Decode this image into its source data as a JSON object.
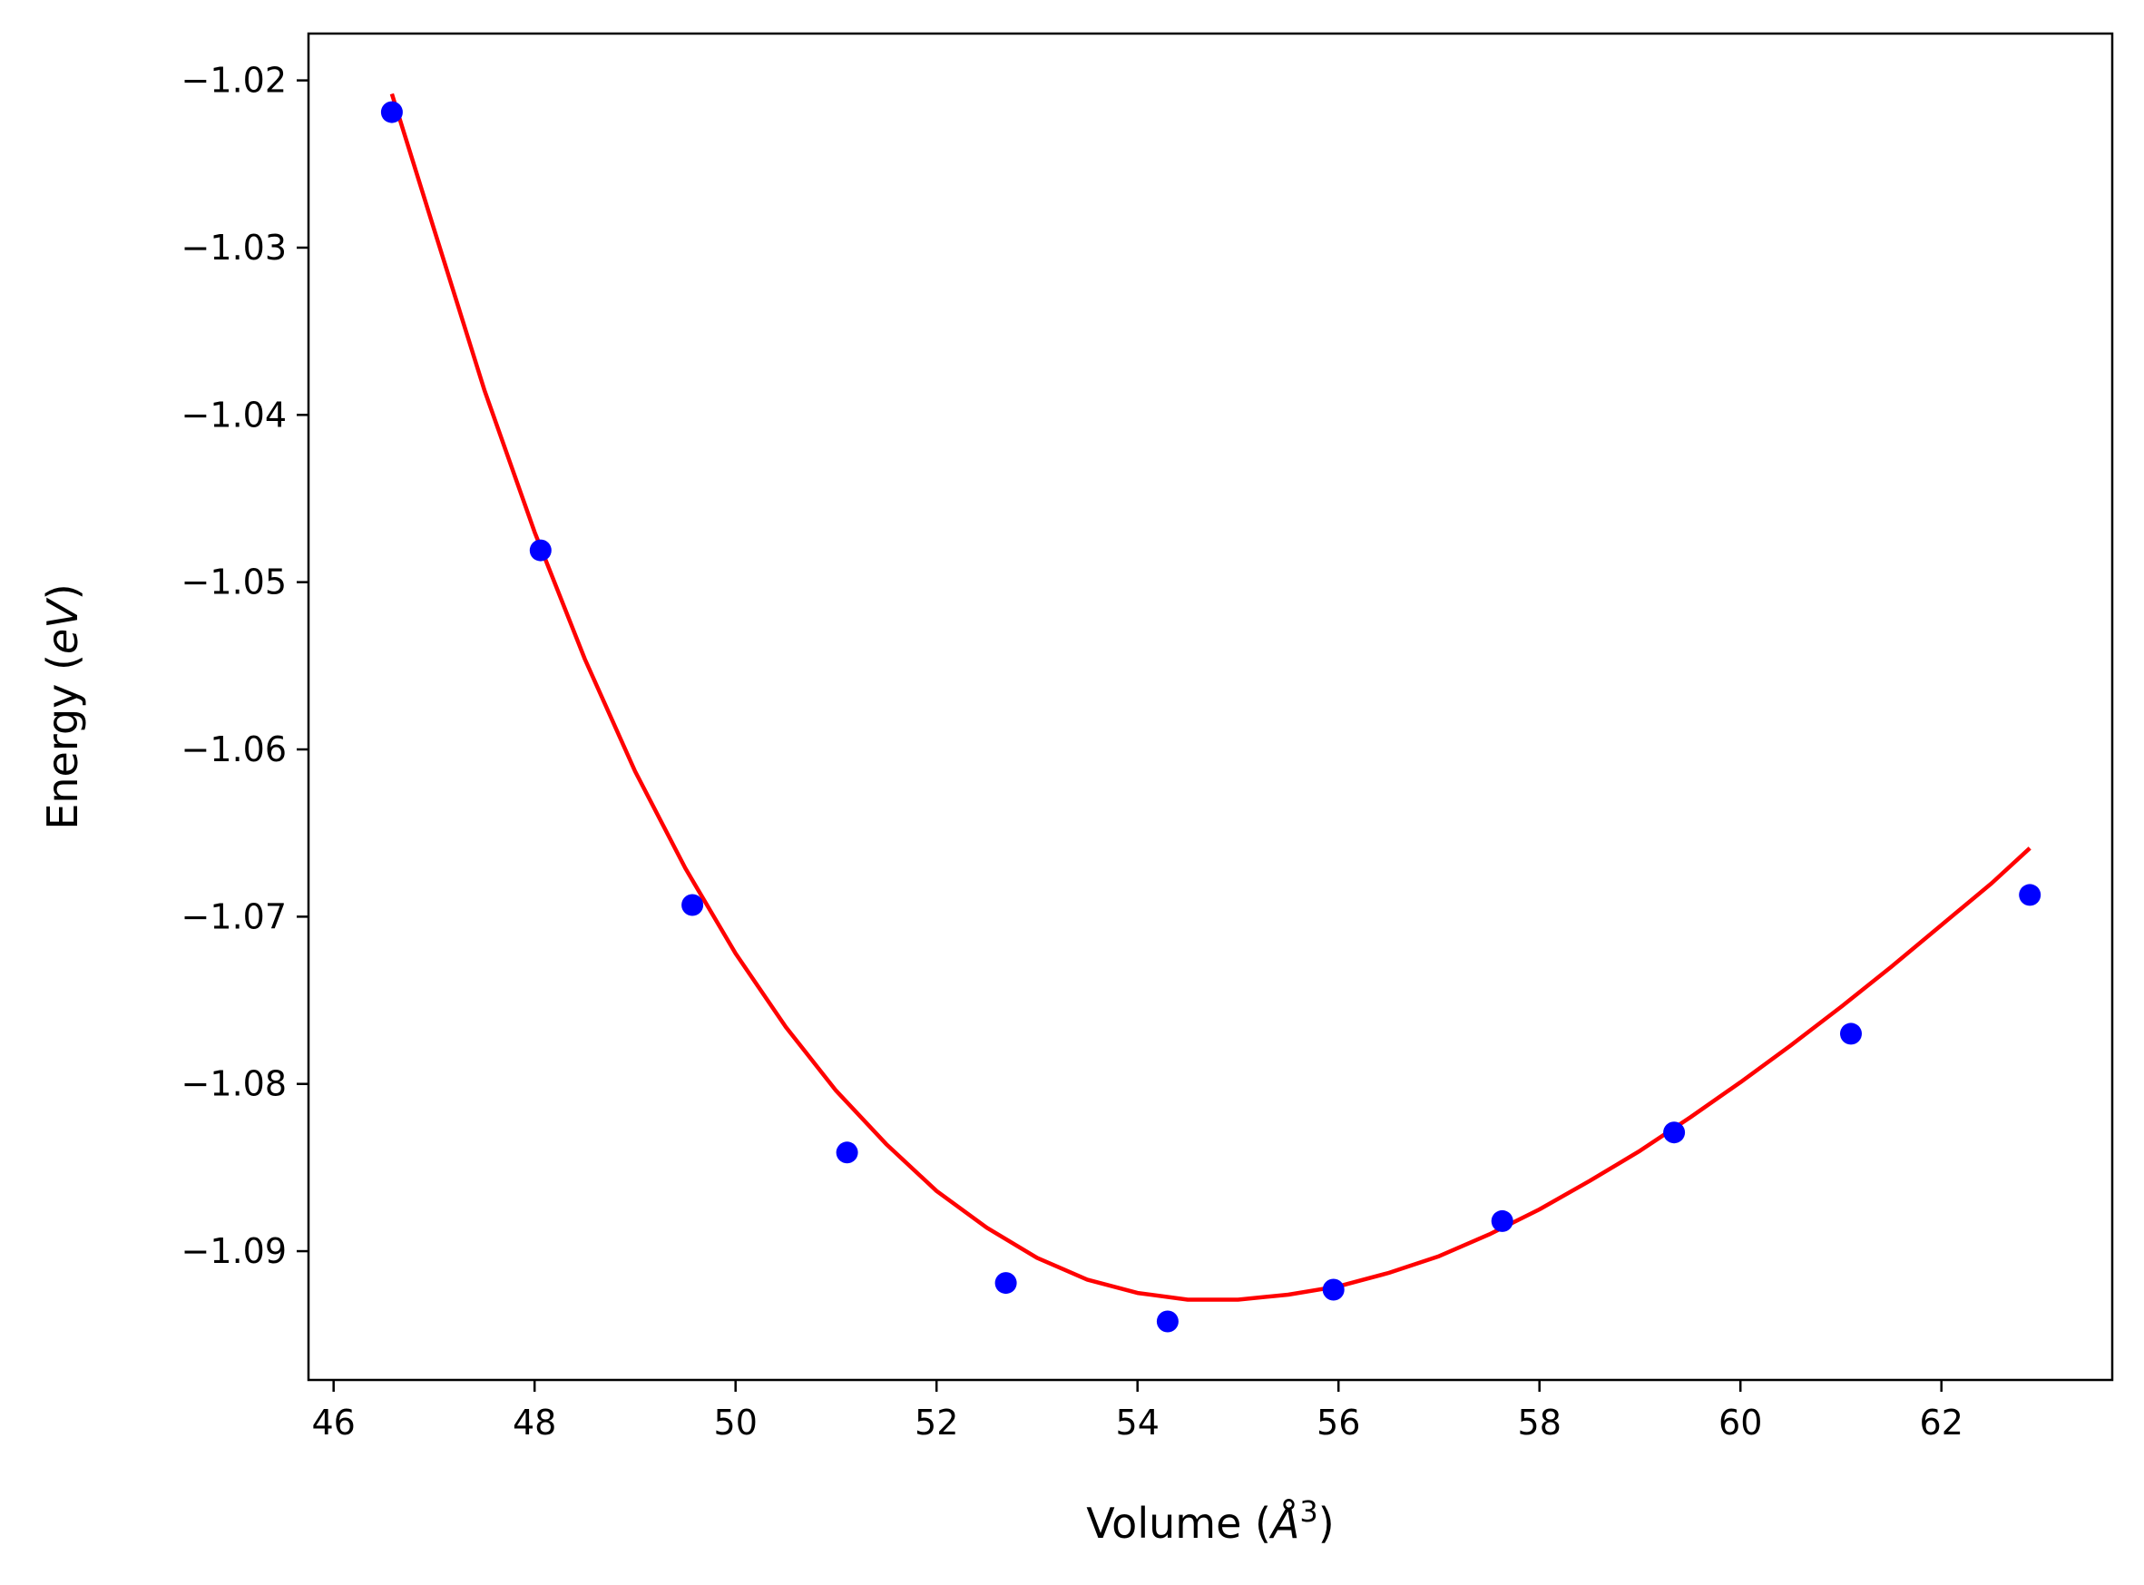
{
  "chart_data": {
    "type": "scatter",
    "xlabel": "Volume (",
    "xlabel_unit": "Å",
    "xlabel_exp": "3",
    "xlabel_close": ")",
    "ylabel": "Energy (",
    "ylabel_unit": "eV",
    "ylabel_close": ")",
    "xlim": [
      45.75,
      63.7
    ],
    "ylim": [
      -1.0977,
      -1.0172
    ],
    "xticks": [
      46,
      48,
      50,
      52,
      54,
      56,
      58,
      60,
      62
    ],
    "xtick_labels": [
      "46",
      "48",
      "50",
      "52",
      "54",
      "56",
      "58",
      "60",
      "62"
    ],
    "yticks": [
      -1.02,
      -1.03,
      -1.04,
      -1.05,
      -1.06,
      -1.07,
      -1.08,
      -1.09
    ],
    "ytick_labels": [
      "−1.02",
      "−1.03",
      "−1.04",
      "−1.05",
      "−1.06",
      "−1.07",
      "−1.08",
      "−1.09"
    ],
    "grid": false,
    "series": [
      {
        "kind": "points",
        "color": "#0000ff",
        "x": [
          46.58,
          48.06,
          49.57,
          51.11,
          52.69,
          54.3,
          55.95,
          57.63,
          59.34,
          61.1,
          62.88
        ],
        "y": [
          -1.0219,
          -1.0481,
          -1.0693,
          -1.0841,
          -1.0919,
          -1.0942,
          -1.0923,
          -1.0882,
          -1.0829,
          -1.077,
          -1.0687
        ]
      },
      {
        "kind": "fit-curve",
        "color": "#ff0000",
        "x": [
          46.58,
          47.0,
          47.5,
          48.0,
          48.5,
          49.0,
          49.5,
          50.0,
          50.5,
          51.0,
          51.5,
          52.0,
          52.5,
          53.0,
          53.5,
          54.0,
          54.5,
          55.0,
          55.5,
          56.0,
          56.5,
          57.0,
          57.5,
          58.0,
          58.5,
          59.0,
          59.5,
          60.0,
          60.5,
          61.0,
          61.5,
          62.0,
          62.5,
          62.88
        ],
        "y": [
          -1.0208,
          -1.0289,
          -1.0385,
          -1.047,
          -1.0546,
          -1.0613,
          -1.0671,
          -1.0722,
          -1.0766,
          -1.0804,
          -1.0836,
          -1.0864,
          -1.0886,
          -1.0904,
          -1.0917,
          -1.0925,
          -1.0929,
          -1.0929,
          -1.0926,
          -1.0921,
          -1.0913,
          -1.0903,
          -1.089,
          -1.0875,
          -1.0858,
          -1.084,
          -1.082,
          -1.0799,
          -1.0777,
          -1.0754,
          -1.073,
          -1.0705,
          -1.068,
          -1.0659
        ]
      }
    ]
  }
}
